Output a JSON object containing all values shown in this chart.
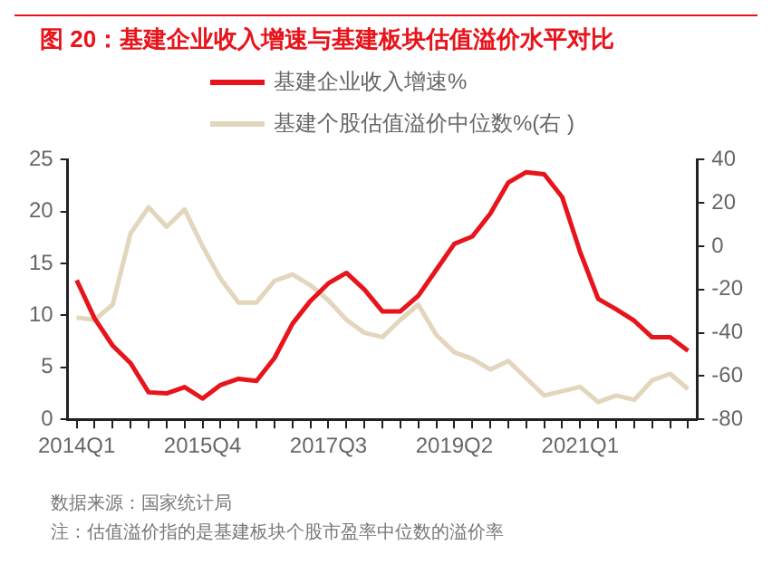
{
  "chart_data": {
    "type": "line",
    "title": "图 20：基建企业收入增速与基建板块估值溢价水平对比",
    "categories": [
      "2014Q1",
      null,
      null,
      null,
      null,
      null,
      null,
      "2015Q4",
      null,
      null,
      null,
      null,
      null,
      null,
      "2017Q3",
      null,
      null,
      null,
      null,
      null,
      null,
      "2019Q2",
      null,
      null,
      null,
      null,
      null,
      null,
      "2021Q1",
      null,
      null,
      null,
      null,
      null,
      null
    ],
    "series": [
      {
        "name": "基建企业收入增速%",
        "color": "#e8141b",
        "values": [
          13.4,
          9.7,
          7.1,
          5.4,
          2.6,
          2.5,
          3.1,
          2.0,
          3.3,
          3.9,
          3.7,
          5.9,
          9.2,
          11.4,
          13.1,
          14.1,
          12.5,
          10.4,
          10.4,
          11.9,
          14.4,
          16.9,
          17.6,
          19.8,
          22.8,
          23.8,
          23.6,
          21.4,
          16.1,
          11.6,
          10.6,
          9.5,
          7.9,
          7.9,
          6.6
        ]
      },
      {
        "name": "基建个股估值溢价中位数%(右 )",
        "color": "#e2d6bd",
        "axis": "y2",
        "values": [
          -33,
          -34,
          -27,
          6,
          18,
          9,
          17,
          0,
          -15,
          -26,
          -26,
          -16,
          -13,
          -18,
          -25,
          -34,
          -40,
          -42,
          -34,
          -27,
          -41,
          -49,
          -52,
          -57,
          -53,
          -61,
          -69,
          -67,
          -65,
          -72,
          -69,
          -71,
          -62,
          -59,
          -66
        ]
      }
    ],
    "ylim": [
      0,
      25
    ],
    "yticks": [
      0,
      5,
      10,
      15,
      20,
      25
    ],
    "y2lim": [
      -80,
      40
    ],
    "y2ticks": [
      -80,
      -60,
      -40,
      -20,
      0,
      20,
      40
    ],
    "grid": false,
    "legend": "top",
    "marker": "none",
    "line_style": "solid",
    "annotations": [
      "数据来源：国家统计局",
      "注：估值溢价指的是基建板块个股市盈率中位数的溢价率"
    ]
  }
}
